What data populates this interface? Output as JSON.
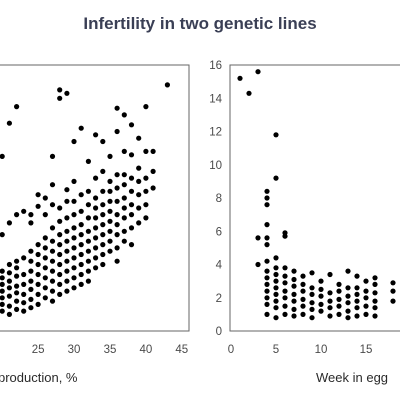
{
  "page_title": "Infertility in two genetic lines",
  "chart_data": [
    {
      "type": "scatter",
      "xlabel": "production, %",
      "ylabel": "",
      "xlim": [
        19,
        46
      ],
      "ylim": [
        0,
        16
      ],
      "x_ticks": [
        25,
        30,
        35,
        40,
        45
      ],
      "grid": false,
      "points": [
        [
          20,
          1.2
        ],
        [
          20,
          1.6
        ],
        [
          20,
          2.0
        ],
        [
          20,
          2.4
        ],
        [
          20,
          2.8
        ],
        [
          20,
          3.2
        ],
        [
          20,
          3.6
        ],
        [
          20,
          5.8
        ],
        [
          20,
          10.5
        ],
        [
          21,
          1.0
        ],
        [
          21,
          1.5
        ],
        [
          21,
          2.1
        ],
        [
          21,
          2.6
        ],
        [
          21,
          3.0
        ],
        [
          21,
          3.5
        ],
        [
          21,
          4.0
        ],
        [
          21,
          6.5
        ],
        [
          21,
          12.5
        ],
        [
          22,
          1.3
        ],
        [
          22,
          1.8
        ],
        [
          22,
          2.3
        ],
        [
          22,
          2.7
        ],
        [
          22,
          3.3
        ],
        [
          22,
          3.8
        ],
        [
          22,
          4.2
        ],
        [
          22,
          7.0
        ],
        [
          22,
          13.5
        ],
        [
          23,
          1.2
        ],
        [
          23,
          1.7
        ],
        [
          23,
          2.2
        ],
        [
          23,
          2.8
        ],
        [
          23,
          3.4
        ],
        [
          23,
          4.4
        ],
        [
          23,
          7.2
        ],
        [
          24,
          1.4
        ],
        [
          24,
          1.9
        ],
        [
          24,
          2.5
        ],
        [
          24,
          3.0
        ],
        [
          24,
          3.6
        ],
        [
          24,
          4.2
        ],
        [
          24,
          4.8
        ],
        [
          24,
          7.0
        ],
        [
          24,
          6.5
        ],
        [
          25,
          1.6
        ],
        [
          25,
          2.2
        ],
        [
          25,
          2.8
        ],
        [
          25,
          3.4
        ],
        [
          25,
          4.0
        ],
        [
          25,
          4.6
        ],
        [
          25,
          5.2
        ],
        [
          25,
          7.5
        ],
        [
          25,
          8.2
        ],
        [
          26,
          2.0
        ],
        [
          26,
          2.6
        ],
        [
          26,
          3.2
        ],
        [
          26,
          3.8
        ],
        [
          26,
          4.4
        ],
        [
          26,
          5.0
        ],
        [
          26,
          5.6
        ],
        [
          26,
          7.0
        ],
        [
          26,
          8.0
        ],
        [
          27,
          1.8
        ],
        [
          27,
          2.4
        ],
        [
          27,
          3.0
        ],
        [
          27,
          3.6
        ],
        [
          27,
          4.2
        ],
        [
          27,
          4.8
        ],
        [
          27,
          5.4
        ],
        [
          27,
          6.2
        ],
        [
          27,
          7.6
        ],
        [
          27,
          8.8
        ],
        [
          27,
          10.5
        ],
        [
          28,
          2.2
        ],
        [
          28,
          2.8
        ],
        [
          28,
          3.4
        ],
        [
          28,
          4.0
        ],
        [
          28,
          4.6
        ],
        [
          28,
          5.2
        ],
        [
          28,
          5.8
        ],
        [
          28,
          6.6
        ],
        [
          28,
          7.4
        ],
        [
          28,
          14.0
        ],
        [
          28,
          14.5
        ],
        [
          29,
          2.4
        ],
        [
          29,
          3.0
        ],
        [
          29,
          3.6
        ],
        [
          29,
          4.2
        ],
        [
          29,
          4.8
        ],
        [
          29,
          5.4
        ],
        [
          29,
          6.0
        ],
        [
          29,
          6.8
        ],
        [
          29,
          7.8
        ],
        [
          29,
          8.5
        ],
        [
          29,
          14.3
        ],
        [
          30,
          2.6
        ],
        [
          30,
          3.2
        ],
        [
          30,
          3.8
        ],
        [
          30,
          4.4
        ],
        [
          30,
          5.0
        ],
        [
          30,
          5.6
        ],
        [
          30,
          6.2
        ],
        [
          30,
          7.0
        ],
        [
          30,
          7.8
        ],
        [
          30,
          9.0
        ],
        [
          30,
          11.4
        ],
        [
          31,
          2.8
        ],
        [
          31,
          3.4
        ],
        [
          31,
          4.0
        ],
        [
          31,
          4.6
        ],
        [
          31,
          5.2
        ],
        [
          31,
          5.8
        ],
        [
          31,
          6.4
        ],
        [
          31,
          7.2
        ],
        [
          31,
          8.2
        ],
        [
          31,
          12.2
        ],
        [
          32,
          3.0
        ],
        [
          32,
          3.6
        ],
        [
          32,
          4.2
        ],
        [
          32,
          4.8
        ],
        [
          32,
          5.4
        ],
        [
          32,
          6.0
        ],
        [
          32,
          6.8
        ],
        [
          32,
          7.6
        ],
        [
          32,
          8.4
        ],
        [
          32,
          10.2
        ],
        [
          33,
          3.8
        ],
        [
          33,
          4.4
        ],
        [
          33,
          5.0
        ],
        [
          33,
          5.6
        ],
        [
          33,
          6.2
        ],
        [
          33,
          6.8
        ],
        [
          33,
          7.4
        ],
        [
          33,
          8.0
        ],
        [
          33,
          9.2
        ],
        [
          33,
          11.8
        ],
        [
          34,
          4.0
        ],
        [
          34,
          4.6
        ],
        [
          34,
          5.2
        ],
        [
          34,
          5.8
        ],
        [
          34,
          6.4
        ],
        [
          34,
          7.0
        ],
        [
          34,
          7.6
        ],
        [
          34,
          8.4
        ],
        [
          34,
          9.6
        ],
        [
          34,
          11.4
        ],
        [
          35,
          4.8
        ],
        [
          35,
          5.4
        ],
        [
          35,
          6.0
        ],
        [
          35,
          6.6
        ],
        [
          35,
          7.2
        ],
        [
          35,
          7.8
        ],
        [
          35,
          8.4
        ],
        [
          35,
          9.0
        ],
        [
          35,
          10.5
        ],
        [
          36,
          4.2
        ],
        [
          36,
          5.0
        ],
        [
          36,
          5.8
        ],
        [
          36,
          6.4
        ],
        [
          36,
          7.0
        ],
        [
          36,
          7.8
        ],
        [
          36,
          8.6
        ],
        [
          36,
          9.4
        ],
        [
          36,
          12.0
        ],
        [
          36,
          13.4
        ],
        [
          37,
          5.4
        ],
        [
          37,
          6.0
        ],
        [
          37,
          6.8
        ],
        [
          37,
          7.4
        ],
        [
          37,
          8.0
        ],
        [
          37,
          8.8
        ],
        [
          37,
          9.4
        ],
        [
          37,
          10.8
        ],
        [
          37,
          13.0
        ],
        [
          38,
          5.2
        ],
        [
          38,
          6.2
        ],
        [
          38,
          7.0
        ],
        [
          38,
          7.6
        ],
        [
          38,
          8.4
        ],
        [
          38,
          9.2
        ],
        [
          38,
          10.6
        ],
        [
          38,
          12.4
        ],
        [
          39,
          6.5
        ],
        [
          39,
          7.4
        ],
        [
          39,
          8.2
        ],
        [
          39,
          9.0
        ],
        [
          39,
          9.8
        ],
        [
          39,
          11.6
        ],
        [
          40,
          6.8
        ],
        [
          40,
          7.6
        ],
        [
          40,
          8.4
        ],
        [
          40,
          9.2
        ],
        [
          40,
          10.8
        ],
        [
          40,
          13.5
        ],
        [
          41,
          8.6
        ],
        [
          41,
          9.6
        ],
        [
          41,
          10.8
        ],
        [
          43,
          14.8
        ]
      ]
    },
    {
      "type": "scatter",
      "xlabel": "Week in egg",
      "ylabel": "",
      "xlim": [
        0,
        19
      ],
      "ylim": [
        0,
        16
      ],
      "x_ticks": [
        0,
        5,
        10,
        15
      ],
      "y_ticks": [
        0,
        2,
        4,
        6,
        8,
        10,
        12,
        14,
        16
      ],
      "grid": false,
      "points": [
        [
          1,
          15.2
        ],
        [
          2,
          14.3
        ],
        [
          3,
          15.6
        ],
        [
          3,
          4.0
        ],
        [
          3,
          5.6
        ],
        [
          4,
          1.0
        ],
        [
          4,
          1.6
        ],
        [
          4,
          2.0
        ],
        [
          4,
          2.4
        ],
        [
          4,
          2.8
        ],
        [
          4,
          3.2
        ],
        [
          4,
          3.6
        ],
        [
          4,
          4.2
        ],
        [
          4,
          5.2
        ],
        [
          4,
          5.6
        ],
        [
          4,
          6.4
        ],
        [
          4,
          7.6
        ],
        [
          4,
          8.0
        ],
        [
          4,
          8.4
        ],
        [
          5,
          0.8
        ],
        [
          5,
          1.4
        ],
        [
          5,
          1.8
        ],
        [
          5,
          2.2
        ],
        [
          5,
          2.6
        ],
        [
          5,
          3.0
        ],
        [
          5,
          3.4
        ],
        [
          5,
          3.8
        ],
        [
          5,
          4.4
        ],
        [
          5,
          9.2
        ],
        [
          5,
          11.8
        ],
        [
          6,
          1.0
        ],
        [
          6,
          1.5
        ],
        [
          6,
          2.0
        ],
        [
          6,
          2.4
        ],
        [
          6,
          2.9
        ],
        [
          6,
          3.3
        ],
        [
          6,
          3.8
        ],
        [
          6,
          5.7
        ],
        [
          6,
          5.9
        ],
        [
          7,
          0.9
        ],
        [
          7,
          1.3
        ],
        [
          7,
          1.8
        ],
        [
          7,
          2.2
        ],
        [
          7,
          2.7
        ],
        [
          7,
          3.1
        ],
        [
          7,
          3.6
        ],
        [
          8,
          1.0
        ],
        [
          8,
          1.5
        ],
        [
          8,
          1.9
        ],
        [
          8,
          2.4
        ],
        [
          8,
          2.8
        ],
        [
          8,
          3.3
        ],
        [
          9,
          0.8
        ],
        [
          9,
          1.3
        ],
        [
          9,
          1.7
        ],
        [
          9,
          2.2
        ],
        [
          9,
          2.6
        ],
        [
          9,
          3.5
        ],
        [
          10,
          1.2
        ],
        [
          10,
          1.6
        ],
        [
          10,
          2.1
        ],
        [
          10,
          2.5
        ],
        [
          10,
          3.0
        ],
        [
          11,
          0.9
        ],
        [
          11,
          1.4
        ],
        [
          11,
          1.8
        ],
        [
          11,
          2.3
        ],
        [
          11,
          3.4
        ],
        [
          12,
          1.0
        ],
        [
          12,
          1.5
        ],
        [
          12,
          1.9
        ],
        [
          12,
          2.4
        ],
        [
          12,
          2.8
        ],
        [
          13,
          0.8
        ],
        [
          13,
          1.2
        ],
        [
          13,
          1.7
        ],
        [
          13,
          2.1
        ],
        [
          13,
          2.6
        ],
        [
          13,
          3.6
        ],
        [
          14,
          0.9
        ],
        [
          14,
          1.4
        ],
        [
          14,
          1.8
        ],
        [
          14,
          2.2
        ],
        [
          14,
          2.6
        ],
        [
          14,
          3.3
        ],
        [
          15,
          1.0
        ],
        [
          15,
          1.5
        ],
        [
          15,
          2.0
        ],
        [
          15,
          2.4
        ],
        [
          15,
          3.0
        ],
        [
          16,
          0.9
        ],
        [
          16,
          1.4
        ],
        [
          16,
          1.8
        ],
        [
          16,
          2.3
        ],
        [
          16,
          2.8
        ],
        [
          16,
          3.2
        ],
        [
          18,
          1.8
        ],
        [
          18,
          2.4
        ],
        [
          18,
          2.9
        ]
      ]
    }
  ]
}
